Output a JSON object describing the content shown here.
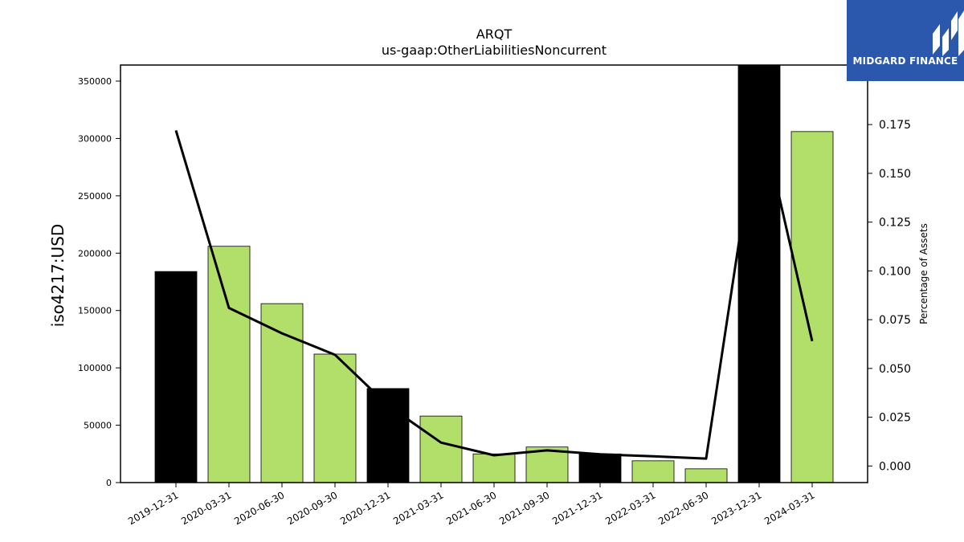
{
  "brand": {
    "name": "MIDGARD FINANCE",
    "background": "#2b58ac",
    "icon": "midgard-logo-icon"
  },
  "chart_data": {
    "type": "bar",
    "title": "ARQT",
    "subtitle": "us-gaap:OtherLiabilitiesNoncurrent",
    "ylabel": "iso4217:USD",
    "y2label": "Percentage of Assets",
    "categories": [
      "2019-12-31",
      "2020-03-31",
      "2020-06-30",
      "2020-09-30",
      "2020-12-31",
      "2021-03-31",
      "2021-06-30",
      "2021-09-30",
      "2021-12-31",
      "2022-03-31",
      "2022-06-30",
      "2023-12-31",
      "2024-03-31"
    ],
    "values": [
      184000,
      206000,
      156000,
      112000,
      82000,
      58000,
      25000,
      31000,
      25000,
      19000,
      12000,
      364000,
      306000
    ],
    "bar_colors": [
      "#000000",
      "#b2df6a",
      "#b2df6a",
      "#b2df6a",
      "#000000",
      "#b2df6a",
      "#b2df6a",
      "#b2df6a",
      "#000000",
      "#b2df6a",
      "#b2df6a",
      "#000000",
      "#b2df6a"
    ],
    "line_values": [
      0.172,
      0.081,
      0.068,
      0.057,
      0.031,
      0.012,
      0.0055,
      0.008,
      0.006,
      0.005,
      0.0038,
      0.183,
      0.064
    ],
    "ylim": [
      0,
      364000
    ],
    "y2lim": [
      -0.0085,
      0.2055
    ],
    "yticks": [
      0,
      50000,
      100000,
      150000,
      200000,
      250000,
      300000,
      350000
    ],
    "y2ticks": [
      "0.000",
      "0.025",
      "0.050",
      "0.075",
      "0.100",
      "0.125",
      "0.150",
      "0.175"
    ],
    "colors": {
      "annual": "#000000",
      "quarterly": "#b2df6a",
      "line": "#000000"
    },
    "grid": false
  }
}
